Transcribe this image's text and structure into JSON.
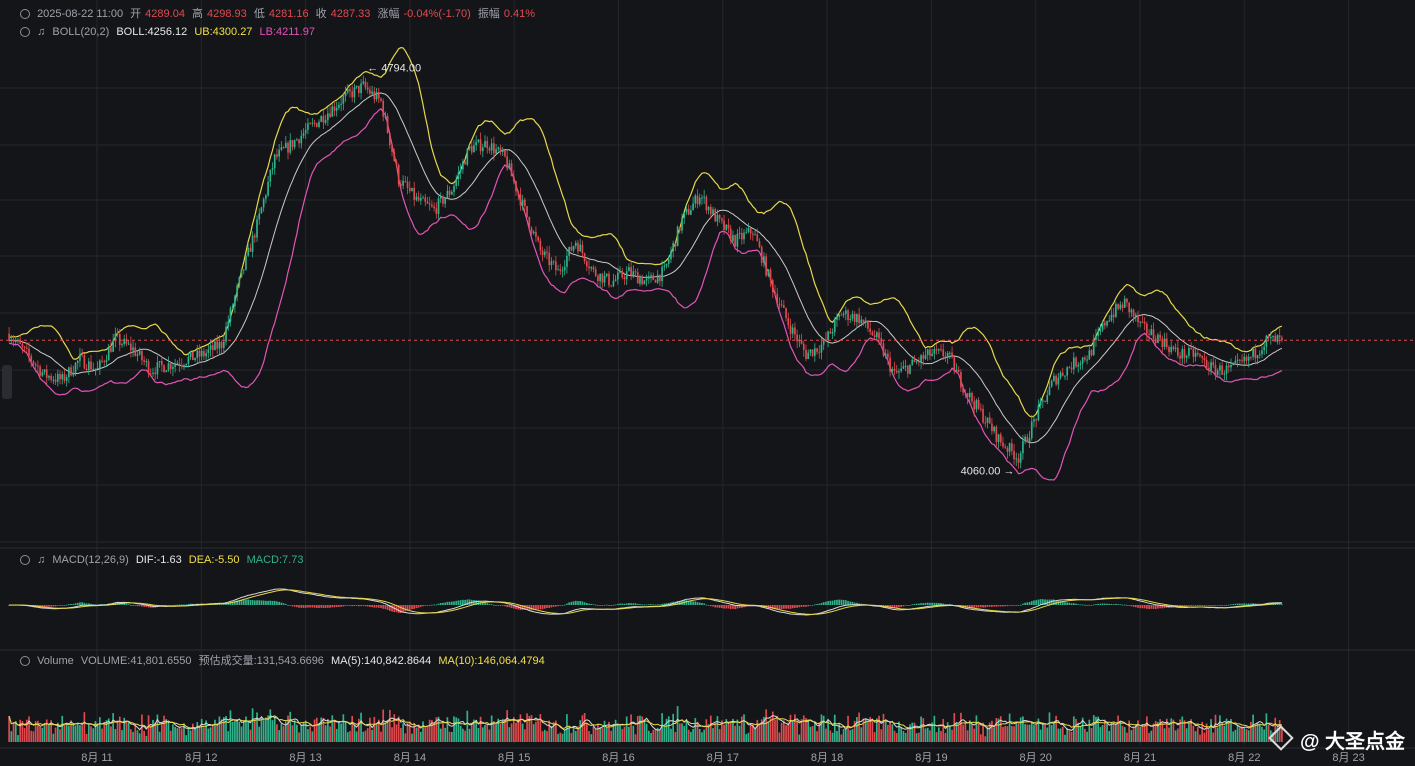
{
  "ohlc_header": {
    "datetime": "2025-08-22 11:00",
    "open_label": "开",
    "open": "4289.04",
    "high_label": "高",
    "high": "4298.93",
    "low_label": "低",
    "low": "4281.16",
    "close_label": "收",
    "close": "4287.33",
    "change_label": "涨幅",
    "change": "-0.04%(-1.70)",
    "amp_label": "振幅",
    "amp": "0.41%"
  },
  "boll_header": {
    "name": "BOLL(20,2)",
    "boll": "BOLL:4256.12",
    "ub": "UB:4300.27",
    "lb": "LB:4211.97"
  },
  "macd_header": {
    "name": "MACD(12,26,9)",
    "dif": "DIF:-1.63",
    "dea": "DEA:-5.50",
    "macd": "MACD:7.73"
  },
  "volume_header": {
    "name": "Volume",
    "volume": "VOLUME:41,801.6550",
    "est_label": "预估成交量:131,543.6696",
    "ma5": "MA(5):140,842.8644",
    "ma10": "MA(10):146,064.4794"
  },
  "annotations": {
    "high_marker": "4794.00",
    "low_marker": "4060.00"
  },
  "watermark": "@ 大圣点金",
  "colors": {
    "up": "#2fb38d",
    "down": "#e04a4f",
    "ub": "#e6d84a",
    "mid": "#c9c9c9",
    "lb": "#e255b8",
    "grid": "#24262b",
    "price_line": "#e04a4f"
  },
  "chart_data": {
    "type": "candlestick",
    "x_tick_labels": [
      "8月 11",
      "8月 12",
      "8月 13",
      "8月 14",
      "8月 15",
      "8月 16",
      "8月 17",
      "8月 18",
      "8月 19",
      "8月 20",
      "8月 21",
      "8月 22",
      "8月 23"
    ],
    "current_price": 4287.33,
    "price_range": [
      3890,
      4870
    ],
    "close_path": [
      [
        0,
        4300
      ],
      [
        8,
        4260
      ],
      [
        16,
        4220
      ],
      [
        24,
        4210
      ],
      [
        32,
        4250
      ],
      [
        40,
        4230
      ],
      [
        48,
        4290
      ],
      [
        56,
        4270
      ],
      [
        64,
        4230
      ],
      [
        72,
        4240
      ],
      [
        80,
        4250
      ],
      [
        88,
        4260
      ],
      [
        96,
        4280
      ],
      [
        104,
        4400
      ],
      [
        112,
        4510
      ],
      [
        120,
        4640
      ],
      [
        128,
        4670
      ],
      [
        136,
        4700
      ],
      [
        144,
        4730
      ],
      [
        152,
        4760
      ],
      [
        160,
        4780
      ],
      [
        168,
        4750
      ],
      [
        176,
        4600
      ],
      [
        184,
        4560
      ],
      [
        192,
        4540
      ],
      [
        200,
        4580
      ],
      [
        208,
        4660
      ],
      [
        216,
        4670
      ],
      [
        224,
        4640
      ],
      [
        232,
        4550
      ],
      [
        240,
        4460
      ],
      [
        248,
        4420
      ],
      [
        256,
        4480
      ],
      [
        264,
        4420
      ],
      [
        272,
        4400
      ],
      [
        280,
        4420
      ],
      [
        288,
        4400
      ],
      [
        296,
        4420
      ],
      [
        304,
        4520
      ],
      [
        312,
        4570
      ],
      [
        320,
        4520
      ],
      [
        328,
        4480
      ],
      [
        336,
        4500
      ],
      [
        344,
        4400
      ],
      [
        352,
        4320
      ],
      [
        360,
        4260
      ],
      [
        368,
        4280
      ],
      [
        376,
        4340
      ],
      [
        384,
        4330
      ],
      [
        392,
        4290
      ],
      [
        400,
        4220
      ],
      [
        408,
        4240
      ],
      [
        416,
        4260
      ],
      [
        424,
        4260
      ],
      [
        432,
        4190
      ],
      [
        440,
        4140
      ],
      [
        448,
        4090
      ],
      [
        456,
        4060
      ],
      [
        464,
        4140
      ],
      [
        472,
        4210
      ],
      [
        480,
        4240
      ],
      [
        488,
        4260
      ],
      [
        496,
        4330
      ],
      [
        504,
        4360
      ],
      [
        512,
        4310
      ],
      [
        520,
        4290
      ],
      [
        528,
        4260
      ],
      [
        536,
        4260
      ],
      [
        544,
        4230
      ],
      [
        552,
        4230
      ],
      [
        560,
        4250
      ],
      [
        568,
        4287
      ]
    ],
    "macd_range": [
      -22,
      22
    ],
    "volume_max": 400000
  }
}
